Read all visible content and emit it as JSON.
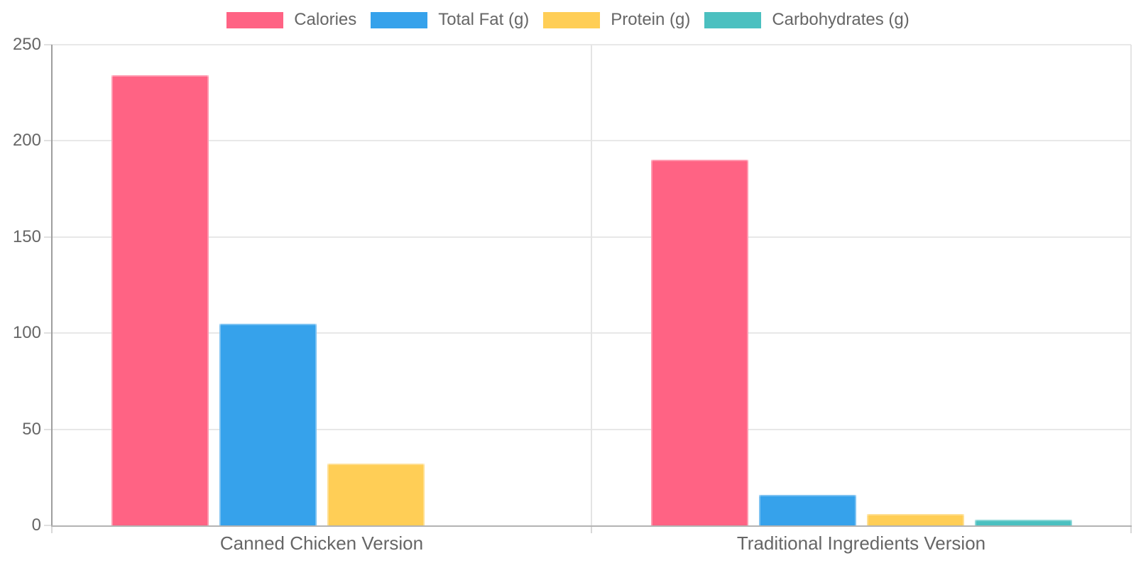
{
  "chart_data": {
    "type": "bar",
    "categories": [
      "Canned Chicken Version",
      "Traditional Ingredients Version"
    ],
    "series": [
      {
        "name": "Calories",
        "color": "#FF6384",
        "values": [
          234,
          190
        ]
      },
      {
        "name": "Total Fat (g)",
        "color": "#36A2EB",
        "values": [
          105,
          16
        ]
      },
      {
        "name": "Protein (g)",
        "color": "#FFCE56",
        "values": [
          32,
          6
        ]
      },
      {
        "name": "Carbohydrates (g)",
        "color": "#4BC0C0",
        "values": [
          0,
          3
        ]
      }
    ],
    "title": "",
    "xlabel": "",
    "ylabel": "",
    "ylim": [
      0,
      250
    ],
    "yticks": [
      0,
      50,
      100,
      150,
      200,
      250
    ],
    "grid": true,
    "legend_position": "top",
    "axis_text_color": "#666666",
    "grid_color": "#e8e8e8"
  }
}
